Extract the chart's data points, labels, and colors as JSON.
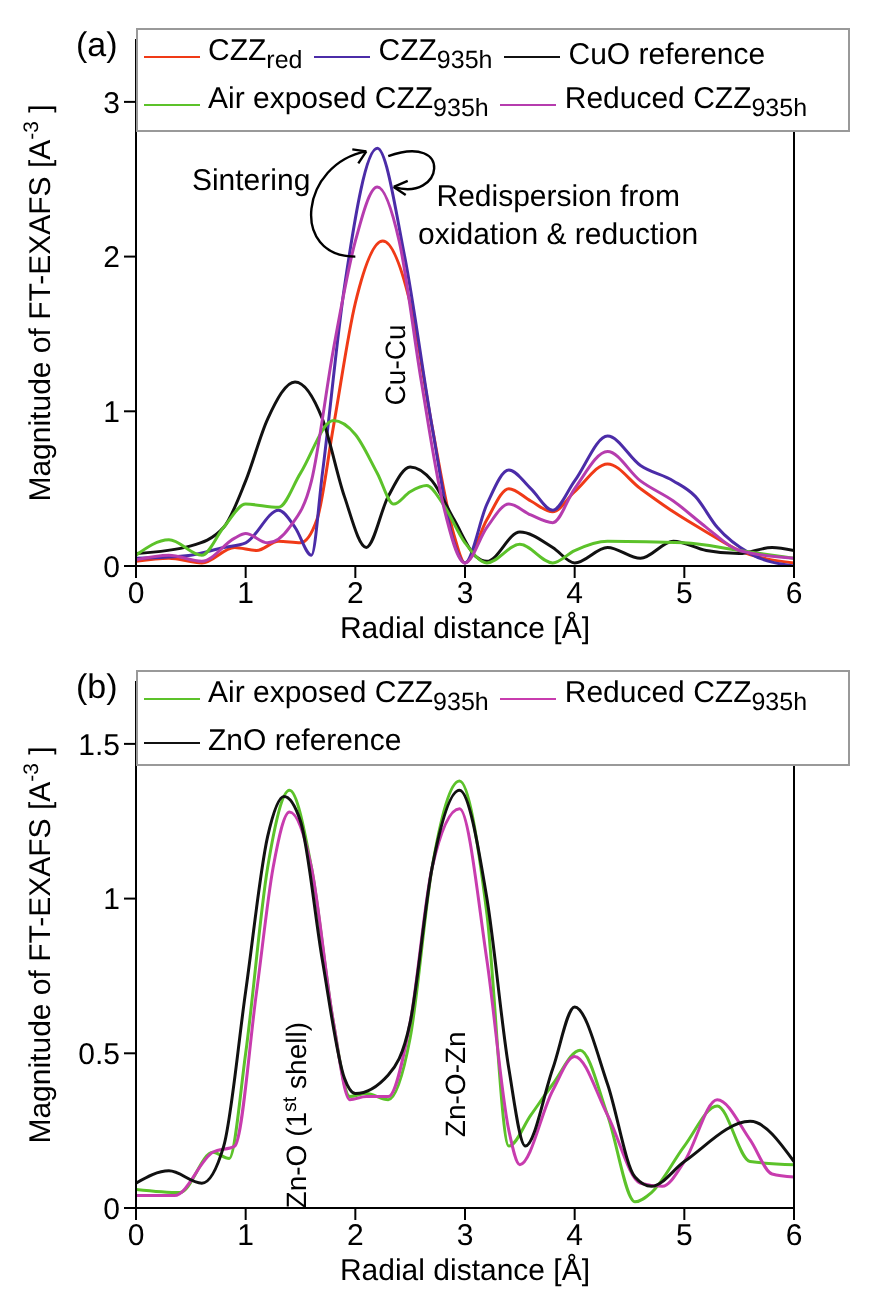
{
  "chart_data": [
    {
      "type": "line",
      "title": "(a)",
      "xlabel": "Radial distance [Å]",
      "ylabel": "Magnitude of  FT-EXAFS [A$^{-3}$]",
      "xlim": [
        0,
        6
      ],
      "xticks": [
        0,
        1,
        2,
        3,
        4,
        5,
        6
      ],
      "ylim": [
        0,
        3.4
      ],
      "yticks": [
        0,
        1,
        2,
        3
      ],
      "grid": false,
      "legend": "top",
      "marker": "none",
      "line_style": "solid",
      "annotations": [
        "Sintering",
        "Redispersion from oxidation & reduction",
        "Cu-Cu"
      ],
      "series": [
        {
          "name": "CZZ$_{red}$",
          "color": "#f03a17",
          "x": [
            0,
            0.3,
            0.6,
            0.9,
            1.1,
            1.3,
            1.5,
            1.65,
            1.8,
            2,
            2.25,
            2.5,
            2.7,
            2.9,
            3,
            3.2,
            3.4,
            3.6,
            3.8,
            4,
            4.3,
            4.6,
            4.9,
            5.2,
            5.5,
            6
          ],
          "values": [
            0.03,
            0.05,
            0.02,
            0.12,
            0.1,
            0.16,
            0.15,
            0.3,
            0.9,
            1.7,
            2.1,
            1.7,
            0.9,
            0.2,
            0.02,
            0.3,
            0.5,
            0.42,
            0.35,
            0.48,
            0.66,
            0.5,
            0.35,
            0.22,
            0.1,
            0.02
          ]
        },
        {
          "name": "CZZ$_{935h}$",
          "color": "#4b2ca8",
          "x": [
            0,
            0.5,
            0.8,
            1,
            1.3,
            1.45,
            1.6,
            1.7,
            1.9,
            2.2,
            2.45,
            2.7,
            2.9,
            3,
            3.2,
            3.4,
            3.6,
            3.8,
            4,
            4.3,
            4.6,
            4.9,
            5.1,
            5.3,
            5.6,
            6
          ],
          "values": [
            0.05,
            0.07,
            0.12,
            0.15,
            0.36,
            0.25,
            0.07,
            0.6,
            1.8,
            2.7,
            2,
            0.9,
            0.15,
            0.02,
            0.4,
            0.62,
            0.5,
            0.36,
            0.55,
            0.84,
            0.65,
            0.55,
            0.45,
            0.25,
            0.08,
            0
          ]
        },
        {
          "name": "CuO reference",
          "color": "#111111",
          "x": [
            0,
            0.5,
            0.8,
            1,
            1.2,
            1.45,
            1.7,
            1.9,
            2.1,
            2.3,
            2.5,
            2.7,
            2.9,
            3.1,
            3.2,
            3.5,
            3.8,
            4,
            4.3,
            4.6,
            4.9,
            5.2,
            5.5,
            5.8,
            6
          ],
          "values": [
            0.08,
            0.13,
            0.25,
            0.55,
            0.95,
            1.19,
            0.95,
            0.45,
            0.12,
            0.45,
            0.64,
            0.55,
            0.3,
            0.06,
            0.03,
            0.22,
            0.12,
            0.02,
            0.12,
            0.05,
            0.16,
            0.1,
            0.08,
            0.12,
            0.1
          ]
        },
        {
          "name": "Air exposed CZZ$_{935h}$",
          "color": "#5cc22a",
          "x": [
            0,
            0.3,
            0.6,
            0.8,
            1,
            1.3,
            1.5,
            1.8,
            2,
            2.2,
            2.35,
            2.5,
            2.65,
            2.8,
            3,
            3.2,
            3.5,
            3.8,
            4,
            4.3,
            5,
            5.5,
            6
          ],
          "values": [
            0.07,
            0.17,
            0.07,
            0.25,
            0.4,
            0.38,
            0.6,
            0.94,
            0.85,
            0.6,
            0.4,
            0.48,
            0.52,
            0.4,
            0.15,
            0.02,
            0.14,
            0.02,
            0.1,
            0.16,
            0.15,
            0.1,
            0.05
          ]
        },
        {
          "name": "Reduced CZZ$_{935h}$",
          "color": "#b63cae",
          "x": [
            0,
            0.3,
            0.6,
            0.9,
            1,
            1.2,
            1.4,
            1.6,
            1.8,
            2,
            2.2,
            2.4,
            2.6,
            2.8,
            3,
            3.2,
            3.4,
            3.6,
            3.8,
            4,
            4.3,
            4.6,
            4.9,
            5.2,
            5.5,
            6
          ],
          "values": [
            0.04,
            0.07,
            0.03,
            0.18,
            0.21,
            0.15,
            0.25,
            0.55,
            1.4,
            2.1,
            2.45,
            2.1,
            1.2,
            0.4,
            0.02,
            0.25,
            0.4,
            0.33,
            0.28,
            0.5,
            0.74,
            0.55,
            0.42,
            0.25,
            0.1,
            0.05
          ]
        }
      ]
    },
    {
      "type": "line",
      "title": "(b)",
      "xlabel": "Radial distance [Å]",
      "ylabel": "Magnitude of  FT-EXAFS [A$^{-3}$]",
      "xlim": [
        0,
        6
      ],
      "xticks": [
        0,
        1,
        2,
        3,
        4,
        5,
        6
      ],
      "ylim": [
        0,
        1.7
      ],
      "yticks": [
        0,
        0.5,
        1,
        1.5
      ],
      "grid": false,
      "legend": "top",
      "marker": "none",
      "line_style": "solid",
      "annotations": [
        "Zn-O (1$^{st}$ shell)",
        "Zn-O-Zn"
      ],
      "series": [
        {
          "name": "Air exposed CZZ$_{935h}$",
          "color": "#5cc22a",
          "x": [
            0,
            0.4,
            0.7,
            0.85,
            1,
            1.2,
            1.4,
            1.6,
            1.8,
            1.95,
            2.1,
            2.3,
            2.5,
            2.7,
            2.95,
            3.2,
            3.4,
            3.6,
            3.8,
            4.05,
            4.3,
            4.55,
            4.7,
            5,
            5.3,
            5.6,
            6
          ],
          "values": [
            0.06,
            0.05,
            0.18,
            0.16,
            0.5,
            1.1,
            1.35,
            1.1,
            0.6,
            0.36,
            0.37,
            0.35,
            0.55,
            1.1,
            1.38,
            0.95,
            0.2,
            0.3,
            0.4,
            0.51,
            0.3,
            0.02,
            0.05,
            0.2,
            0.33,
            0.15,
            0.14
          ]
        },
        {
          "name": "Reduced CZZ$_{935h}$",
          "color": "#c83cae",
          "x": [
            0,
            0.35,
            0.7,
            0.9,
            1.1,
            1.25,
            1.4,
            1.6,
            1.8,
            1.95,
            2.1,
            2.3,
            2.5,
            2.7,
            2.95,
            3.2,
            3.4,
            3.5,
            3.8,
            4,
            4.3,
            4.6,
            4.8,
            5,
            5.3,
            5.6,
            5.8,
            6
          ],
          "values": [
            0.04,
            0.04,
            0.18,
            0.2,
            0.7,
            1.1,
            1.28,
            1.1,
            0.6,
            0.35,
            0.36,
            0.36,
            0.6,
            1.1,
            1.29,
            0.8,
            0.25,
            0.14,
            0.38,
            0.49,
            0.3,
            0.08,
            0.07,
            0.15,
            0.35,
            0.22,
            0.11,
            0.1
          ]
        },
        {
          "name": "ZnO reference",
          "color": "#111111",
          "x": [
            0,
            0.3,
            0.6,
            0.8,
            1,
            1.2,
            1.35,
            1.5,
            1.7,
            1.9,
            2,
            2.3,
            2.5,
            2.7,
            2.95,
            3.2,
            3.4,
            3.55,
            3.8,
            4,
            4.3,
            4.55,
            4.7,
            5,
            5.6,
            6
          ],
          "values": [
            0.08,
            0.12,
            0.08,
            0.2,
            0.7,
            1.2,
            1.33,
            1.25,
            0.8,
            0.42,
            0.37,
            0.43,
            0.6,
            1.1,
            1.35,
            1,
            0.45,
            0.2,
            0.45,
            0.65,
            0.4,
            0.1,
            0.07,
            0.15,
            0.28,
            0.15
          ]
        }
      ]
    }
  ]
}
